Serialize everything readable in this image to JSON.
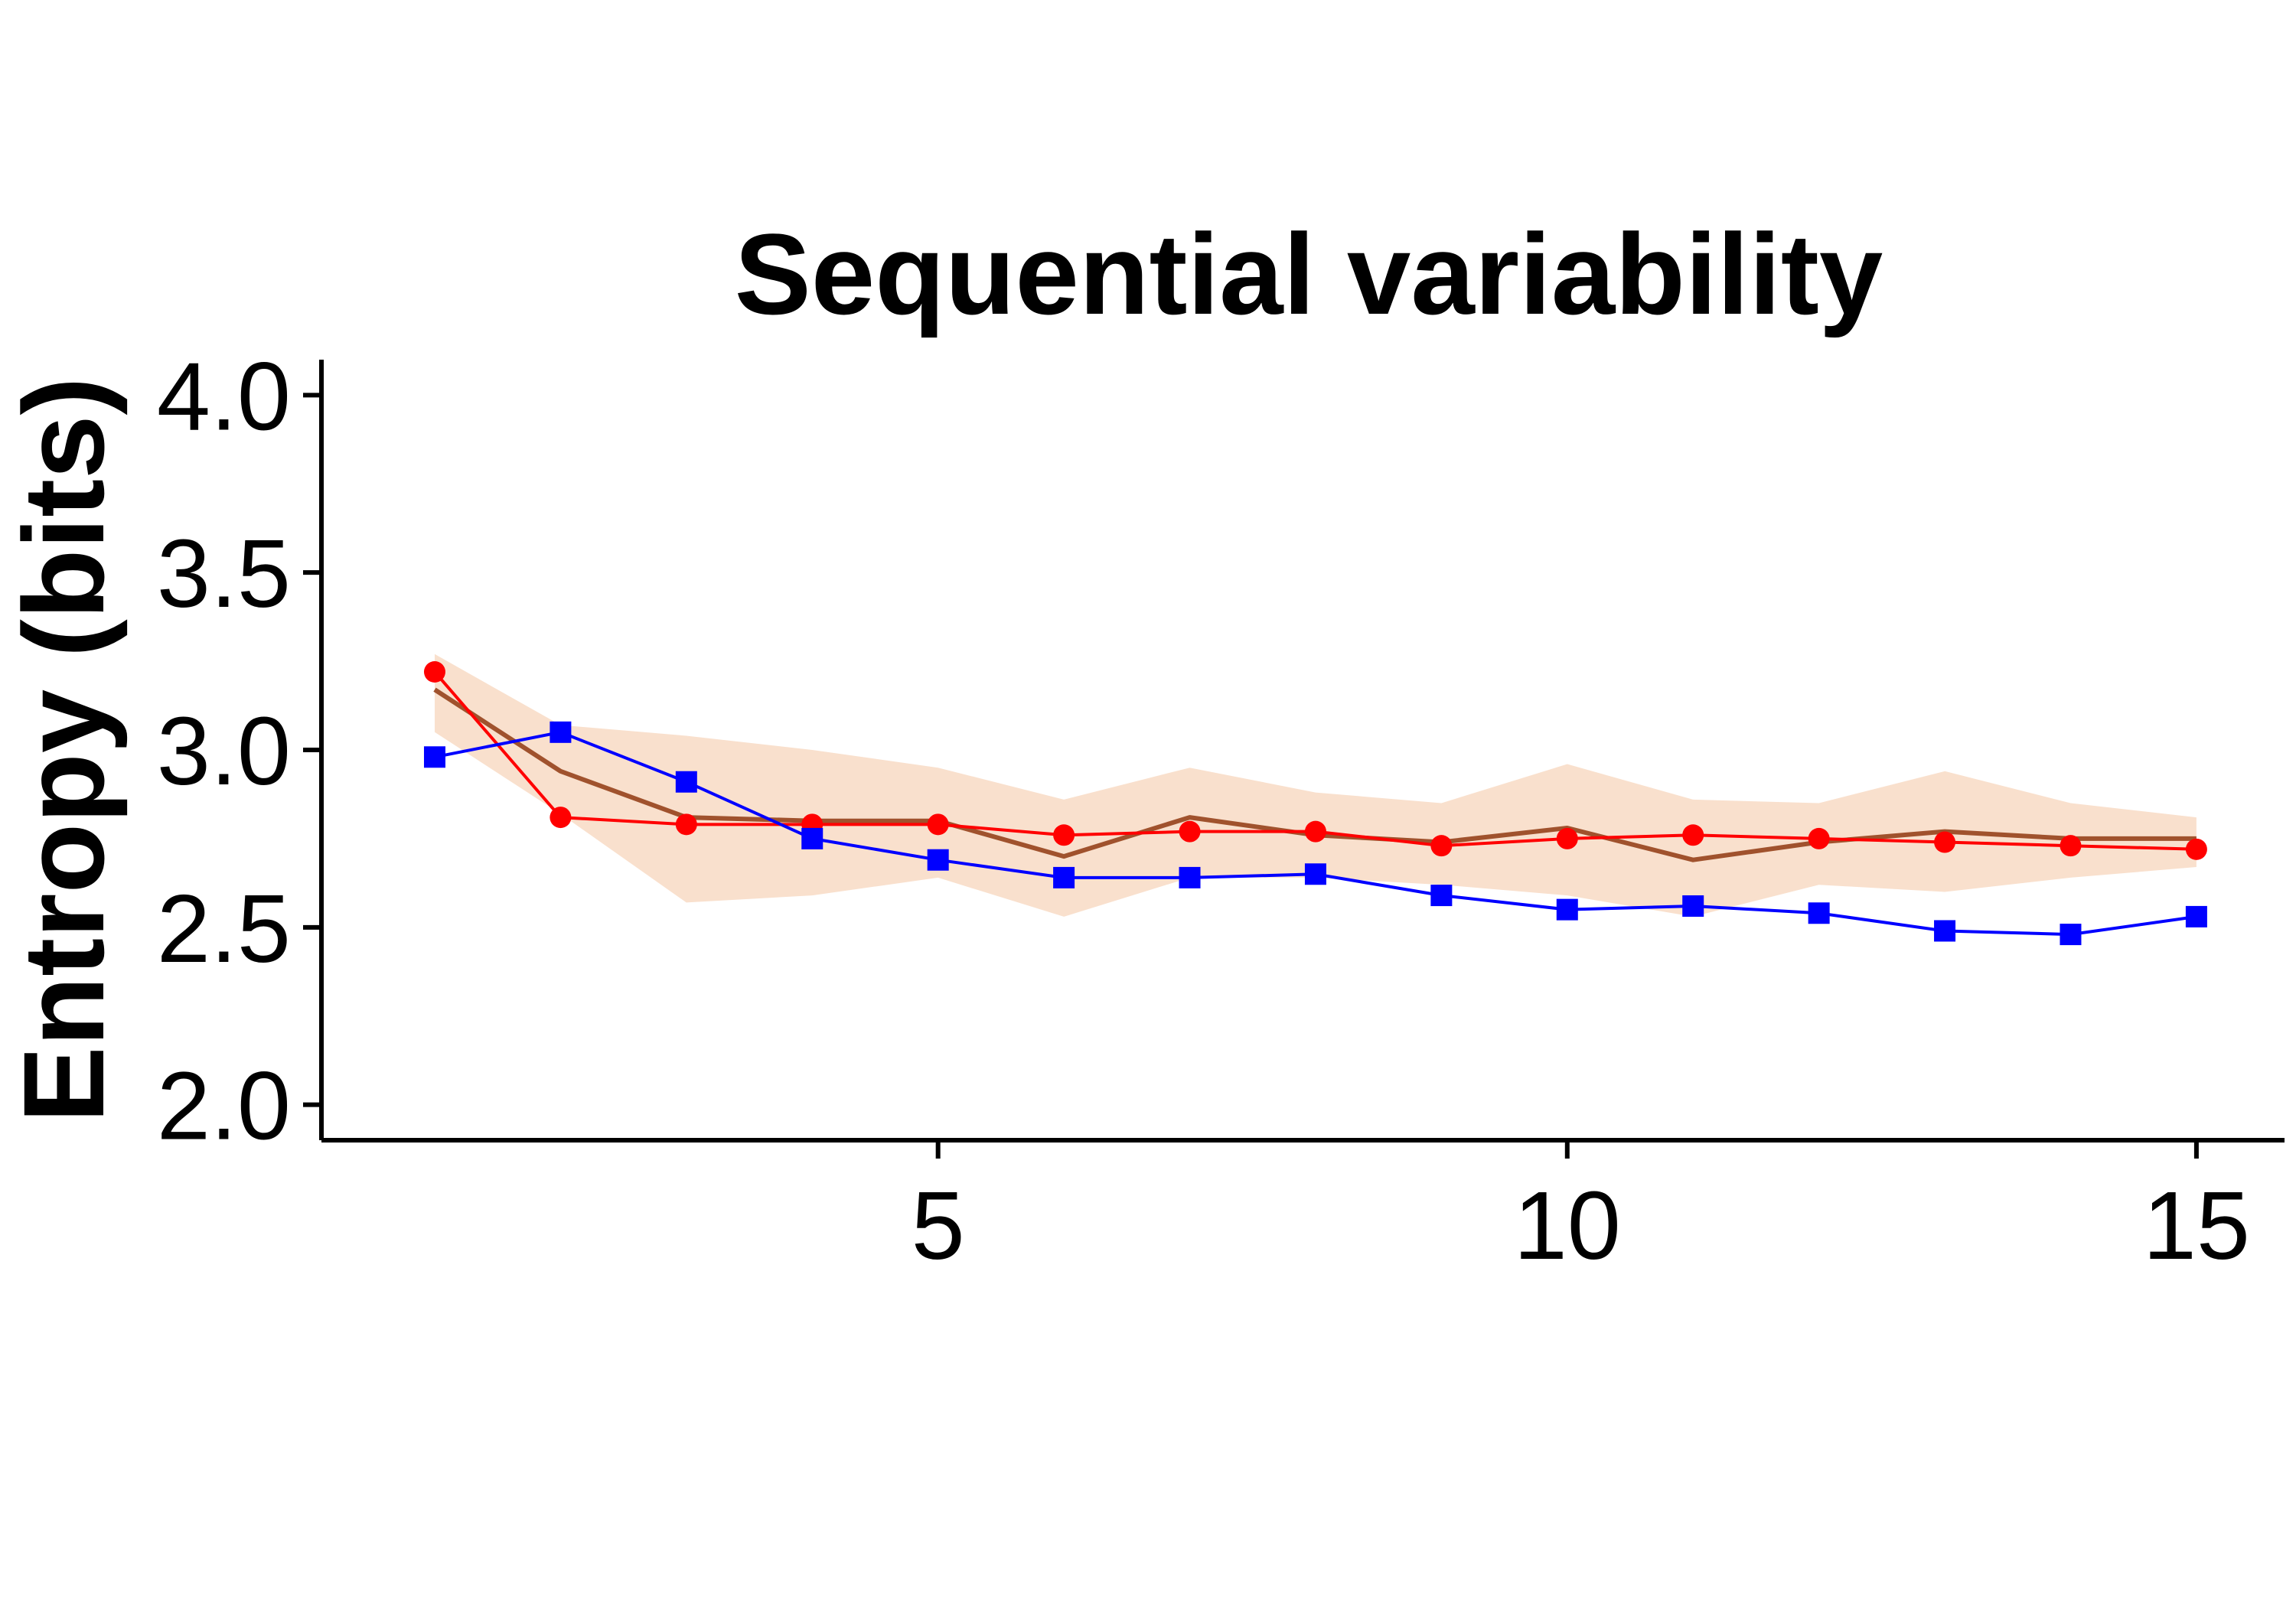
{
  "chart_data": {
    "type": "line",
    "title": "Sequential variability",
    "xlabel": "",
    "ylabel": "Entropy (bits)",
    "xlim": [
      0.1,
      15.7
    ],
    "ylim": [
      1.9,
      4.1
    ],
    "xticks": [
      5,
      10,
      15
    ],
    "yticks": [
      2.0,
      2.5,
      3.0,
      3.5,
      4.0
    ],
    "xtick_labels": [
      "5",
      "10",
      "15"
    ],
    "ytick_labels": [
      "2.0",
      "2.5",
      "3.0",
      "3.5",
      "4.0"
    ],
    "grid": false,
    "legend": "none",
    "x": [
      1,
      2,
      3,
      4,
      5,
      6,
      7,
      8,
      9,
      10,
      11,
      12,
      13,
      14,
      15
    ],
    "band": {
      "color": "#f9e0cd",
      "lower": [
        3.05,
        2.82,
        2.57,
        2.59,
        2.64,
        2.53,
        2.64,
        2.64,
        2.62,
        2.59,
        2.53,
        2.62,
        2.6,
        2.64,
        2.67
      ],
      "upper": [
        3.27,
        3.07,
        3.04,
        3.0,
        2.95,
        2.86,
        2.95,
        2.88,
        2.85,
        2.96,
        2.86,
        2.85,
        2.94,
        2.85,
        2.81
      ]
    },
    "series": [
      {
        "color": "#a0522d",
        "marker": "none",
        "values": [
          3.17,
          2.94,
          2.81,
          2.8,
          2.8,
          2.7,
          2.81,
          2.76,
          2.74,
          2.78,
          2.69,
          2.74,
          2.77,
          2.75,
          2.75
        ]
      },
      {
        "color": "#ff0000",
        "marker": "circle",
        "values": [
          3.22,
          2.81,
          2.79,
          2.79,
          2.79,
          2.76,
          2.77,
          2.77,
          2.73,
          2.75,
          2.76,
          2.75,
          2.74,
          2.73,
          2.72
        ]
      },
      {
        "color": "#0000ff",
        "marker": "square",
        "values": [
          2.98,
          3.05,
          2.91,
          2.75,
          2.69,
          2.64,
          2.64,
          2.65,
          2.59,
          2.55,
          2.56,
          2.54,
          2.49,
          2.48,
          2.53
        ]
      }
    ]
  }
}
